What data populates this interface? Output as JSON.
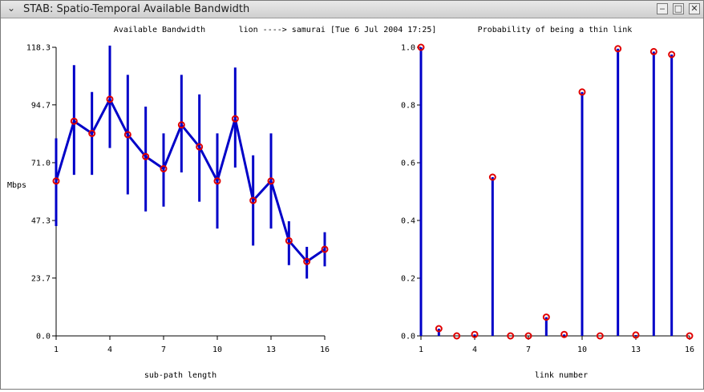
{
  "window": {
    "title": "STAB: Spatio-Temporal Available Bandwidth",
    "menu_icon": "chevron-down-icon",
    "minimize_icon": "minimize-icon",
    "maximize_icon": "maximize-icon",
    "close_icon": "close-icon"
  },
  "header": {
    "path_label": "lion ----> samurai [Tue 6 Jul 2004 17:25]"
  },
  "chart_data": [
    {
      "type": "line",
      "title": "Available Bandwidth",
      "xlabel": "sub-path length",
      "ylabel": "Mbps",
      "x": [
        1,
        2,
        3,
        4,
        5,
        6,
        7,
        8,
        9,
        10,
        11,
        12,
        13,
        14,
        15,
        16
      ],
      "values": [
        63.5,
        88.0,
        83.0,
        97.0,
        82.5,
        73.5,
        68.5,
        86.5,
        77.5,
        63.5,
        89.0,
        55.5,
        63.5,
        39.0,
        30.5,
        35.5
      ],
      "error_low": [
        45.0,
        66.0,
        66.0,
        77.0,
        58.0,
        51.0,
        53.0,
        67.0,
        55.0,
        44.0,
        69.0,
        37.0,
        44.0,
        29.0,
        23.5,
        28.5
      ],
      "error_high": [
        81.0,
        111.0,
        100.0,
        119.0,
        107.0,
        94.0,
        83.0,
        107.0,
        99.0,
        83.0,
        110.0,
        74.0,
        83.0,
        47.0,
        36.5,
        42.5
      ],
      "xticks": [
        1,
        4,
        7,
        10,
        13,
        16
      ],
      "yticks": [
        0.0,
        23.7,
        47.3,
        71.0,
        94.7,
        118.3
      ],
      "ytick_labels": [
        "0.0",
        "23.7",
        "47.3",
        "71.0",
        "94.7",
        "118.3"
      ],
      "xlim": [
        1,
        16
      ],
      "ylim": [
        0,
        118.3
      ],
      "line_color": "#0000c8",
      "marker_color": "#e00000"
    },
    {
      "type": "stem",
      "title": "Probability of being a thin link",
      "xlabel": "link number",
      "ylabel": "",
      "x": [
        1,
        2,
        3,
        4,
        5,
        6,
        7,
        8,
        9,
        10,
        11,
        12,
        13,
        14,
        15,
        16
      ],
      "values": [
        1.0,
        0.025,
        0.0,
        0.005,
        0.55,
        0.0,
        0.0,
        0.065,
        0.005,
        0.845,
        0.0,
        0.995,
        0.003,
        0.985,
        0.975,
        0.0
      ],
      "xticks": [
        1,
        4,
        7,
        10,
        13,
        16
      ],
      "yticks": [
        0.0,
        0.2,
        0.4,
        0.6,
        0.8,
        1.0
      ],
      "ytick_labels": [
        "0.0",
        "0.2",
        "0.4",
        "0.6",
        "0.8",
        "1.0"
      ],
      "xlim": [
        1,
        16
      ],
      "ylim": [
        0,
        1.0
      ],
      "line_color": "#0000c8",
      "marker_color": "#e00000"
    }
  ]
}
